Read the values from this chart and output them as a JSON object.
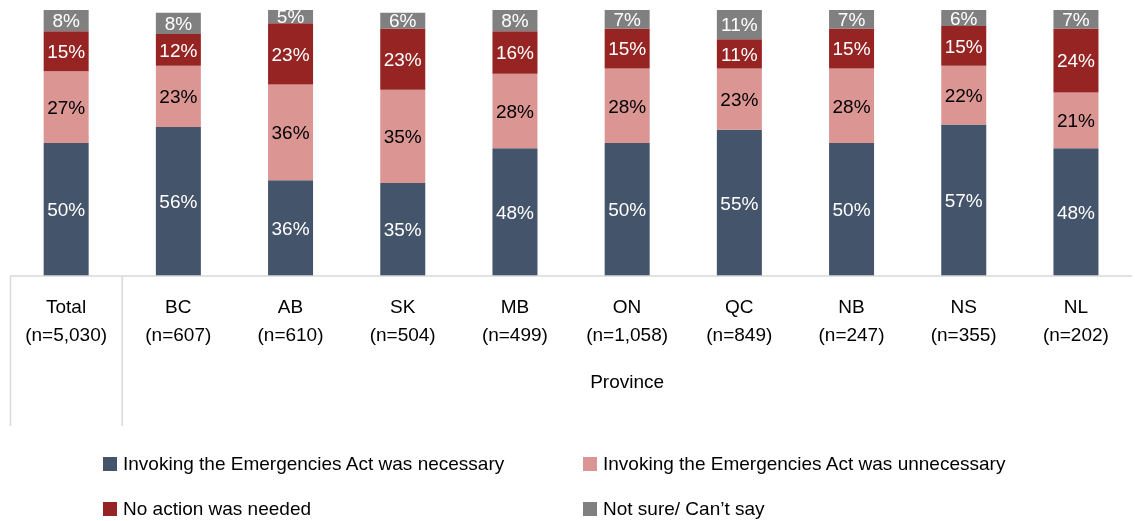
{
  "chart_data": {
    "type": "bar",
    "stacked": true,
    "categories": [
      "Total\n(n=5,030)",
      "BC\n(n=607)",
      "AB\n(n=610)",
      "SK\n(n=504)",
      "MB\n(n=499)",
      "ON\n(n=1,058)",
      "QC\n(n=849)",
      "NB\n(n=247)",
      "NS\n(n=355)",
      "NL\n(n=202)"
    ],
    "xlabel": "Province",
    "series": [
      {
        "name": "Invoking the Emergencies Act was necessary",
        "color": "#44546a",
        "values": [
          50,
          56,
          36,
          35,
          48,
          50,
          55,
          50,
          57,
          48
        ],
        "value_labels": [
          "50%",
          "56%",
          "36%",
          "35%",
          "48%",
          "50%",
          "55%",
          "50%",
          "57%",
          "48%"
        ]
      },
      {
        "name": "Invoking the Emergencies Act was unnecessary",
        "color": "#db9694",
        "values": [
          27,
          23,
          36,
          35,
          28,
          28,
          23,
          28,
          22,
          21
        ],
        "value_labels": [
          "27%",
          "23%",
          "36%",
          "35%",
          "28%",
          "28%",
          "23%",
          "28%",
          "22%",
          "21%"
        ]
      },
      {
        "name": "No action was needed",
        "color": "#952422",
        "values": [
          15,
          12,
          23,
          23,
          16,
          15,
          11,
          15,
          15,
          24
        ],
        "value_labels": [
          "15%",
          "12%",
          "23%",
          "23%",
          "16%",
          "15%",
          "11%",
          "15%",
          "15%",
          "24%"
        ]
      },
      {
        "name": "Not sure/ Can’t say",
        "color": "#808080",
        "values": [
          8,
          8,
          5,
          6,
          8,
          7,
          11,
          7,
          6,
          7
        ],
        "value_labels": [
          "8%",
          "8%",
          "5%",
          "6%",
          "8%",
          "7%",
          "11%",
          "7%",
          "6%",
          "7%"
        ]
      }
    ],
    "tick_labels": "x",
    "legend": "bottom"
  }
}
